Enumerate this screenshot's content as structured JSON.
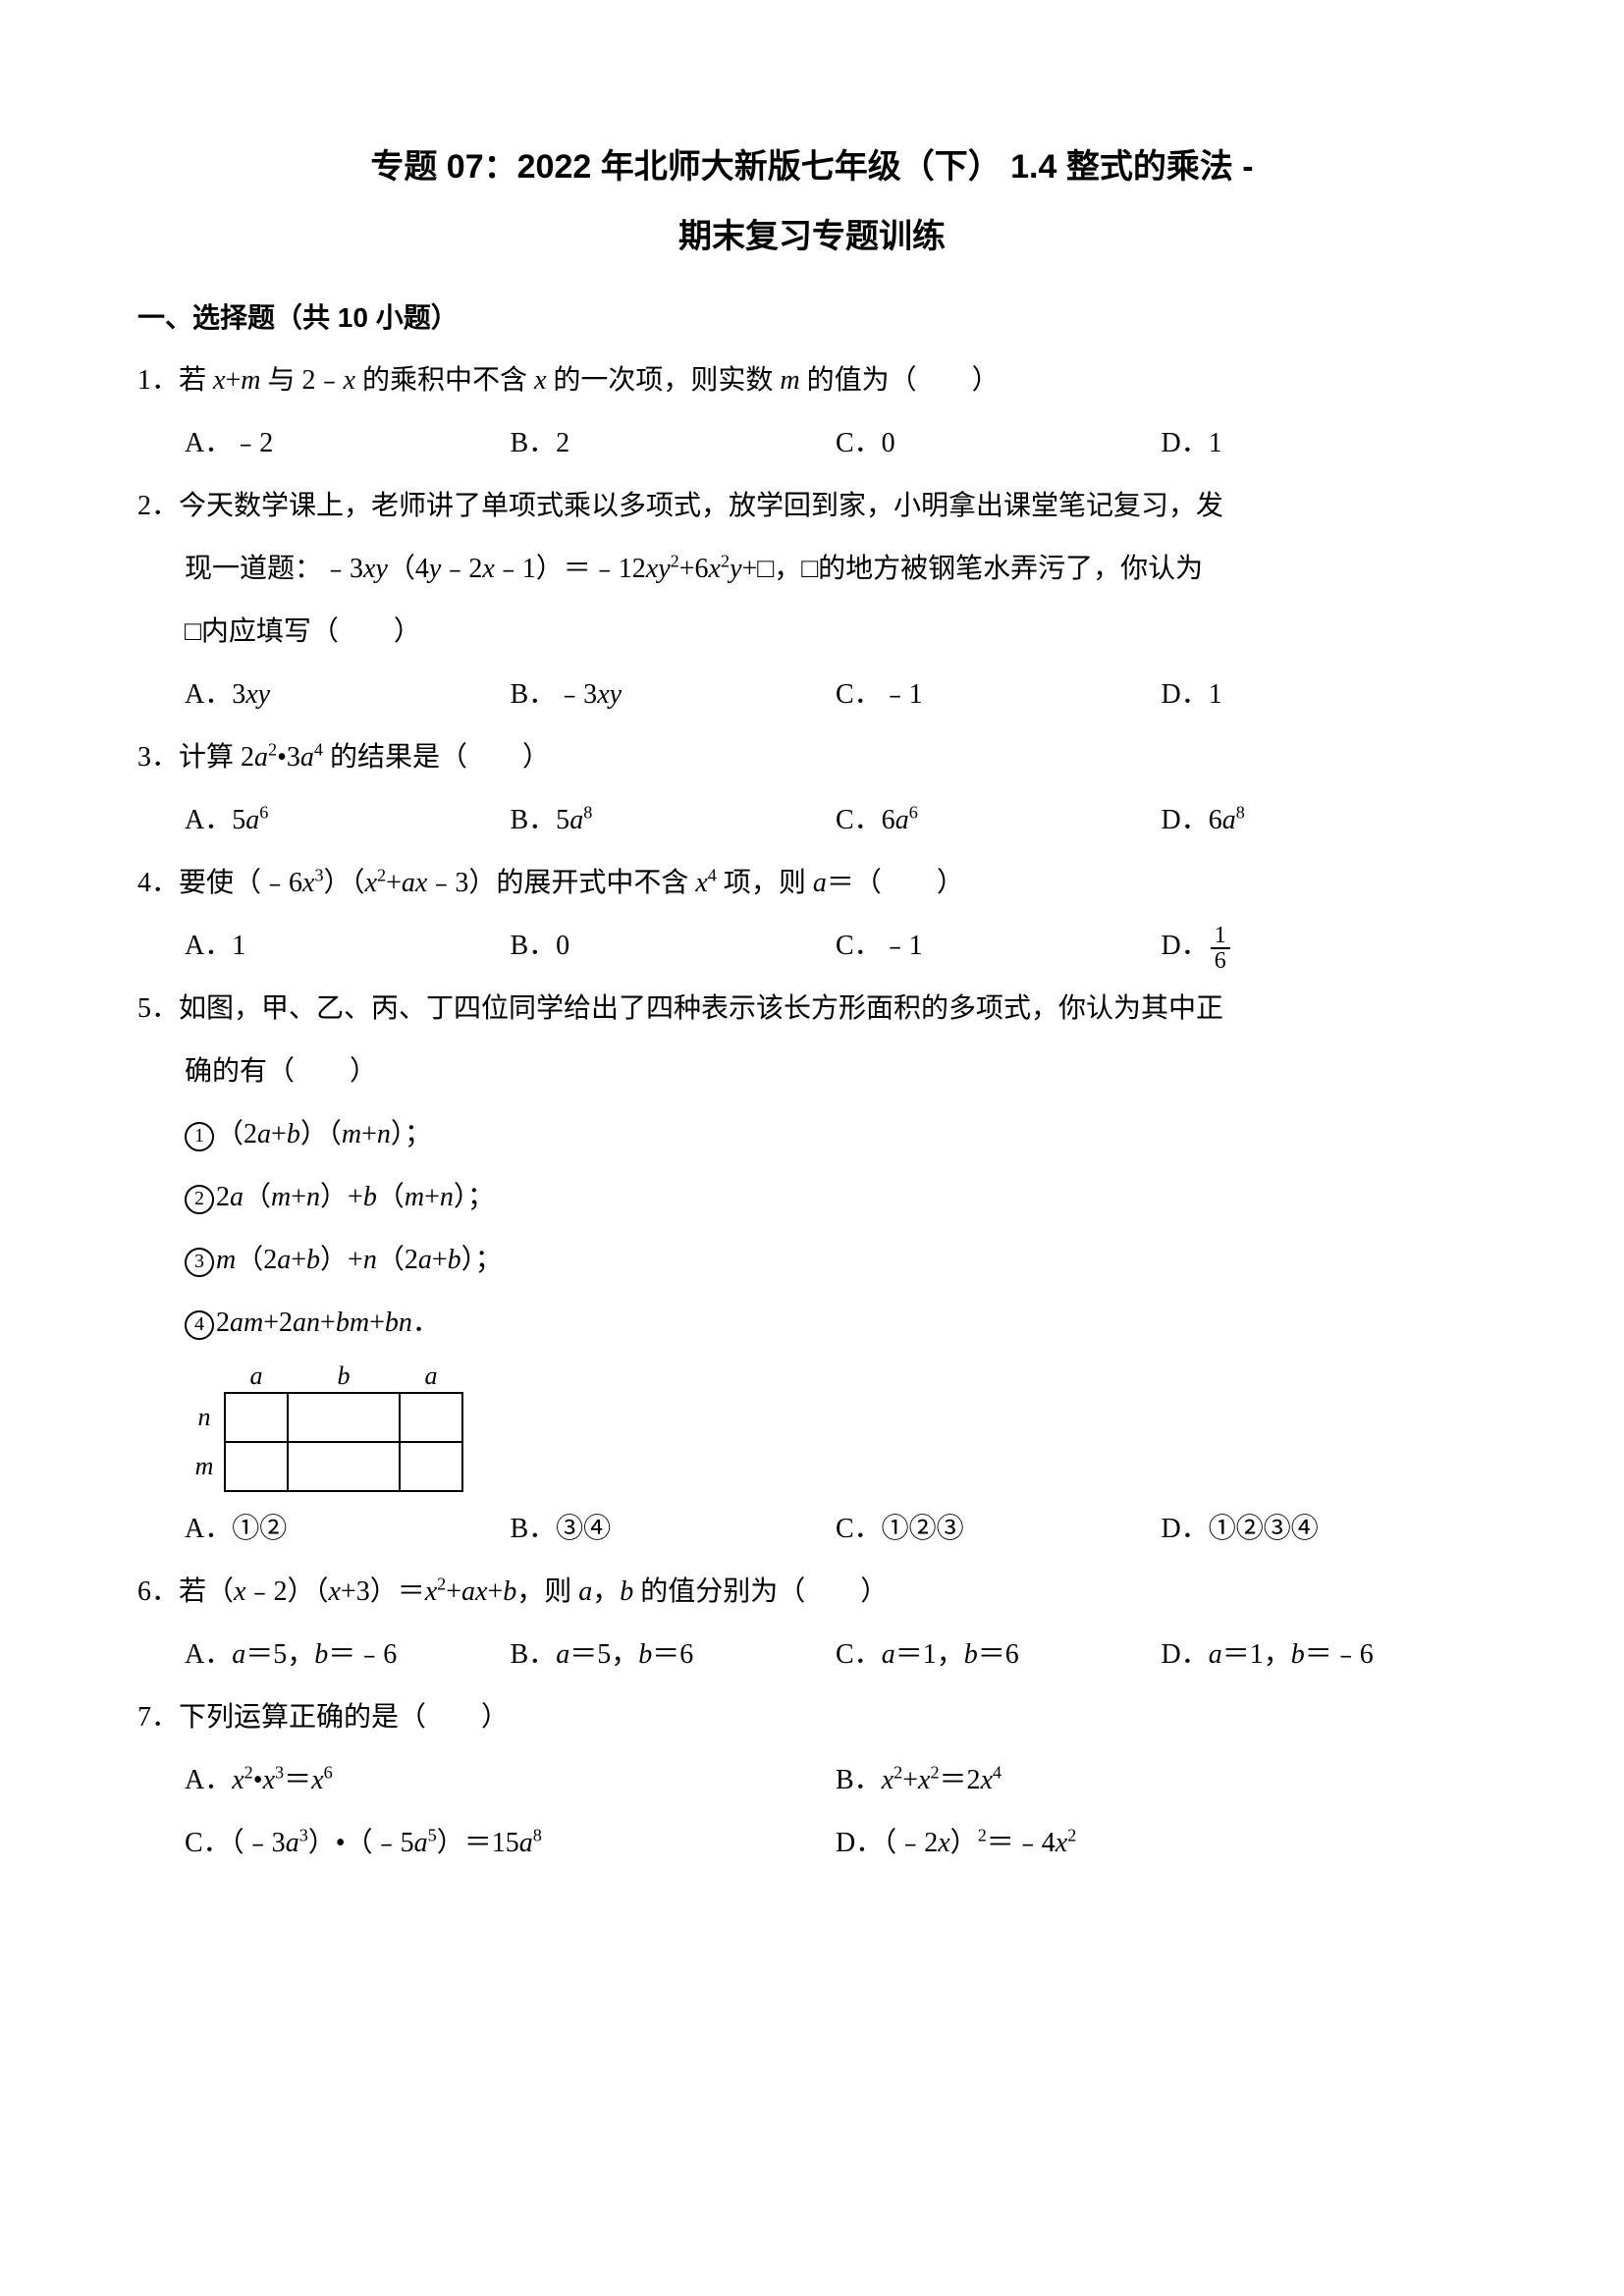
{
  "title1": "专题 07：2022 年北师大新版七年级（下） 1.4 整式的乘法 ‐",
  "title2": "期末复习专题训练",
  "section1": "一、选择题（共 10 小题）",
  "q1": {
    "stem_pre": "1．若 ",
    "stem_mid1": "+",
    "stem_mid2": " 与 2﹣",
    "stem_mid3": " 的乘积中不含 ",
    "stem_mid4": " 的一次项，则实数 ",
    "stem_post": " 的值为（　　）",
    "A": "A．﹣2",
    "B": "B．2",
    "C": "C．0",
    "D": "D．1"
  },
  "q2": {
    "line1": "2．今天数学课上，老师讲了单项式乘以多项式，放学回到家，小明拿出课堂笔记复习，发",
    "line2_pre": "现一道题：﹣3",
    "line2_mid1": "（4",
    "line2_mid2": "﹣2",
    "line2_mid3": "﹣1）＝﹣12",
    "line2_mid4": "+6",
    "line2_post": "+□，□的地方被钢笔水弄污了，你认为",
    "line3": "□内应填写（　　）",
    "A_pre": "A．3",
    "B_pre": "B．﹣3",
    "C": "C．﹣1",
    "D": "D．1"
  },
  "q3": {
    "stem_pre": "3．计算 2",
    "stem_mid": "•3",
    "stem_post": " 的结果是（　　）",
    "A_pre": "A．5",
    "B_pre": "B．5",
    "C_pre": "C．6",
    "D_pre": "D．6"
  },
  "q4": {
    "stem_pre": "4．要使（﹣6",
    "stem_mid1": "）（",
    "stem_mid2": "+",
    "stem_mid3": "﹣3）的展开式中不含 ",
    "stem_mid4": " 项，则 ",
    "stem_post": "＝（　　）",
    "A": "A．1",
    "B": "B．0",
    "C": "C．﹣1",
    "D_pre": "D．",
    "frac_n": "1",
    "frac_d": "6"
  },
  "q5": {
    "line1": "5．如图，甲、乙、丙、丁四位同学给出了四种表示该长方形面积的多项式，你认为其中正",
    "line2": "确的有（　　）",
    "o1_pre": "（2",
    "o1_mid": "+",
    "o1_mid2": "）（",
    "o1_mid3": "+",
    "o1_post": "）；",
    "o2_pre": "2",
    "o2_mid1": "（",
    "o2_mid2": "+",
    "o2_mid3": "）+",
    "o2_mid4": "（",
    "o2_mid5": "+",
    "o2_post": "）；",
    "o3_pre": "",
    "o3_mid1": "（2",
    "o3_mid2": "+",
    "o3_mid3": "）+",
    "o3_mid4": "（2",
    "o3_mid5": "+",
    "o3_post": "）；",
    "o4_pre": "2",
    "o4_mid1": "+2",
    "o4_mid2": "+",
    "o4_mid3": "+",
    "o4_post": "．",
    "lbl_a": "a",
    "lbl_b": "b",
    "lbl_n": "n",
    "lbl_m": "m",
    "c1": "1",
    "c2": "2",
    "c3": "3",
    "c4": "4",
    "A": "A．①②",
    "B": "B．③④",
    "C": "C．①②③",
    "D": "D．①②③④"
  },
  "q6": {
    "stem_pre": "6．若（",
    "stem_mid1": "﹣2）（",
    "stem_mid2": "+3）＝",
    "stem_mid3": "+",
    "stem_mid4": "+",
    "stem_mid5": "，则 ",
    "stem_mid6": "，",
    "stem_post": " 的值分别为（　　）",
    "A": "A．a＝5，b＝﹣6",
    "B": "B．a＝5，b＝6",
    "C": "C．a＝1，b＝6",
    "D": "D．a＝1，b＝﹣6"
  },
  "q7": {
    "stem": "7．下列运算正确的是（　　）",
    "A_pre": "A．",
    "A_post": "＝",
    "B_pre": "B．",
    "B_mid": "+",
    "B_post": "＝2",
    "C_pre": "C．（﹣3",
    "C_mid": "）•（﹣5",
    "C_post": "）＝15",
    "D_pre": "D．（﹣2",
    "D_mid": "）",
    "D_post": "＝﹣4"
  }
}
